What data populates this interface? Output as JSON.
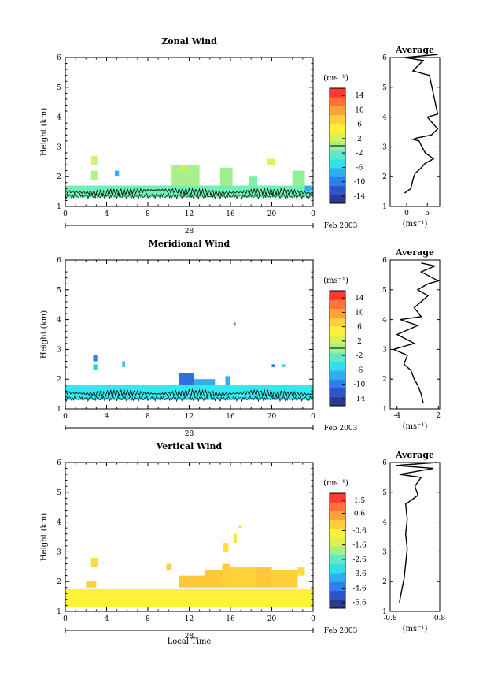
{
  "common": {
    "ylabel": "Height (km)",
    "y_range": [
      1,
      6
    ],
    "y_ticks": [
      "1",
      "2",
      "3",
      "4",
      "5",
      "6"
    ],
    "x_range": [
      0,
      24
    ],
    "x_ticks": [
      "0",
      "4",
      "8",
      "12",
      "16",
      "20",
      "0"
    ],
    "date_day": "28",
    "date_label": "Feb 2003",
    "xlabel": "Local Time",
    "units_label": "(ms⁻¹)",
    "profile_title": "Average",
    "profile_xlabel": "(ms⁻¹)"
  },
  "colors": {
    "colormap": [
      "#2b3a8c",
      "#2c56c8",
      "#2f7fe8",
      "#30aef0",
      "#35dde8",
      "#60e8c8",
      "#9ef08a",
      "#dcf050",
      "#fff03a",
      "#ffce3a",
      "#ffa23a",
      "#ff723a",
      "#ff3a2e"
    ],
    "contour": "#000000"
  },
  "chart_data": [
    {
      "type": "heatmap",
      "title": "Zonal Wind",
      "colorbar_ticks": [
        "14",
        "10",
        "6",
        "2",
        "-2",
        "-6",
        "-10",
        "-14"
      ],
      "colorbar_range": [
        -16,
        16
      ],
      "main_fill_color": "#6ff0b8",
      "bands": [
        [
          0,
          24,
          1.3,
          1.7
        ]
      ],
      "patches": [
        [
          2.5,
          3.1,
          2.4,
          2.7,
          "#cdf080"
        ],
        [
          2.5,
          3.1,
          1.9,
          2.2,
          "#b8f090"
        ],
        [
          4.8,
          5.2,
          2.0,
          2.2,
          "#30aef0"
        ],
        [
          10.3,
          13.0,
          1.7,
          2.4,
          "#a9f08a"
        ],
        [
          11.0,
          11.8,
          2.2,
          2.4,
          "#cdf060"
        ],
        [
          15.0,
          16.2,
          1.7,
          2.3,
          "#9ef08a"
        ],
        [
          17.8,
          18.6,
          1.7,
          2.0,
          "#7ff0a8"
        ],
        [
          19.5,
          20.3,
          2.4,
          2.6,
          "#e4f050"
        ],
        [
          22.0,
          23.2,
          1.7,
          2.2,
          "#8ff098"
        ],
        [
          23.2,
          23.8,
          1.5,
          1.7,
          "#30aef0"
        ]
      ],
      "contour_wave": [
        [
          0,
          1.5
        ],
        [
          3,
          1.45
        ],
        [
          6,
          1.5
        ],
        [
          9,
          1.55
        ],
        [
          12,
          1.5
        ],
        [
          15,
          1.45
        ],
        [
          18,
          1.5
        ],
        [
          21,
          1.5
        ],
        [
          24,
          1.45
        ]
      ],
      "profile": {
        "xlim": [
          -4,
          8
        ],
        "xticks": [
          "0",
          "5"
        ],
        "xtick_values": [
          0,
          5
        ],
        "points": [
          [
            7.5,
            6.1
          ],
          [
            -0.5,
            6.0
          ],
          [
            4.0,
            5.9
          ],
          [
            1.5,
            5.55
          ],
          [
            5.5,
            5.4
          ],
          [
            7.5,
            4.1
          ],
          [
            5.0,
            4.0
          ],
          [
            7.5,
            3.6
          ],
          [
            6.0,
            3.4
          ],
          [
            2.5,
            3.3
          ],
          [
            1.5,
            3.25
          ],
          [
            3.0,
            3.2
          ],
          [
            3.5,
            3.05
          ],
          [
            4.5,
            2.8
          ],
          [
            6.5,
            2.6
          ],
          [
            4.5,
            2.45
          ],
          [
            3.5,
            2.3
          ],
          [
            2.0,
            2.1
          ],
          [
            1.5,
            1.9
          ],
          [
            1.0,
            1.6
          ],
          [
            -0.5,
            1.45
          ]
        ]
      }
    },
    {
      "type": "heatmap",
      "title": "Meridional Wind",
      "colorbar_ticks": [
        "14",
        "10",
        "6",
        "2",
        "-2",
        "-6",
        "-10",
        "-14"
      ],
      "colorbar_range": [
        -16,
        16
      ],
      "main_fill_color": "#35e8f0",
      "bands": [
        [
          0,
          24,
          1.3,
          1.8
        ]
      ],
      "patches": [
        [
          2.7,
          3.1,
          2.6,
          2.8,
          "#2f7fe8"
        ],
        [
          2.7,
          3.1,
          2.3,
          2.5,
          "#35c8f0"
        ],
        [
          5.5,
          5.8,
          2.4,
          2.6,
          "#35c8f0"
        ],
        [
          11.0,
          12.5,
          1.8,
          2.2,
          "#2f6fe0"
        ],
        [
          12.5,
          14.5,
          1.8,
          2.0,
          "#30aef0"
        ],
        [
          15.5,
          16.0,
          1.8,
          2.1,
          "#30aef0"
        ],
        [
          16.3,
          16.5,
          3.8,
          3.9,
          "#2f7fe8"
        ],
        [
          20.0,
          20.3,
          2.4,
          2.5,
          "#2f7fe8"
        ],
        [
          21.0,
          21.3,
          2.4,
          2.5,
          "#35dde8"
        ]
      ],
      "contour_wave": [
        [
          0,
          1.55
        ],
        [
          3,
          1.5
        ],
        [
          6,
          1.55
        ],
        [
          9,
          1.5
        ],
        [
          12,
          1.55
        ],
        [
          15,
          1.5
        ],
        [
          18,
          1.55
        ],
        [
          21,
          1.5
        ],
        [
          24,
          1.5
        ]
      ],
      "profile": {
        "xlim": [
          -5,
          2.2
        ],
        "xticks": [
          "-4",
          "2"
        ],
        "xtick_values": [
          -4,
          2
        ],
        "points": [
          [
            -0.5,
            5.9
          ],
          [
            1.5,
            5.8
          ],
          [
            -0.5,
            5.6
          ],
          [
            2.0,
            5.3
          ],
          [
            0.5,
            5.2
          ],
          [
            -1.0,
            5.0
          ],
          [
            0.5,
            4.8
          ],
          [
            -1.5,
            4.4
          ],
          [
            -0.5,
            4.1
          ],
          [
            -3.5,
            4.0
          ],
          [
            -1.0,
            3.8
          ],
          [
            -4.0,
            3.5
          ],
          [
            -1.5,
            3.2
          ],
          [
            -4.5,
            3.0
          ],
          [
            -2.5,
            2.8
          ],
          [
            -3.0,
            2.5
          ],
          [
            -2.0,
            2.3
          ],
          [
            -1.5,
            2.0
          ],
          [
            -1.0,
            1.8
          ],
          [
            -0.5,
            1.5
          ],
          [
            -0.2,
            1.2
          ]
        ]
      }
    },
    {
      "type": "heatmap",
      "title": "Vertical Wind",
      "colorbar_ticks": [
        "1.5",
        "0.6",
        "-0.6",
        "-1.6",
        "-2.6",
        "-3.6",
        "-4.6",
        "-5.6"
      ],
      "colorbar_range": [
        -6,
        2
      ],
      "main_fill_color": "#fff03a",
      "bands": [
        [
          0,
          24,
          1.15,
          1.75
        ]
      ],
      "patches": [
        [
          2.5,
          3.2,
          2.5,
          2.8,
          "#ffdc3a"
        ],
        [
          2.0,
          3.0,
          1.8,
          2.0,
          "#ffce3a"
        ],
        [
          9.8,
          10.3,
          2.4,
          2.6,
          "#ffce3a"
        ],
        [
          11.0,
          13.5,
          1.8,
          2.2,
          "#ffc83a"
        ],
        [
          13.5,
          15.2,
          1.8,
          2.4,
          "#ffc83a"
        ],
        [
          15.2,
          16.0,
          1.8,
          2.6,
          "#ffce3a"
        ],
        [
          16.0,
          18.5,
          1.8,
          2.5,
          "#ffd23a"
        ],
        [
          18.5,
          20.0,
          1.8,
          2.5,
          "#ffc83a"
        ],
        [
          20.0,
          22.5,
          1.8,
          2.4,
          "#ffce3a"
        ],
        [
          22.5,
          23.2,
          2.2,
          2.5,
          "#ffdc3a"
        ],
        [
          15.3,
          15.8,
          3.0,
          3.3,
          "#ffe03a"
        ],
        [
          16.3,
          16.6,
          3.3,
          3.6,
          "#ffe03a"
        ],
        [
          16.8,
          17.1,
          3.8,
          3.9,
          "#ffe03a"
        ]
      ],
      "contour_wave": [],
      "profile": {
        "xlim": [
          -0.8,
          0.8
        ],
        "xticks": [
          "-0.8",
          "0.8"
        ],
        "xtick_values": [
          -0.8,
          0.8
        ],
        "points": [
          [
            0.7,
            6.0
          ],
          [
            -0.6,
            5.9
          ],
          [
            0.6,
            5.8
          ],
          [
            -0.5,
            5.6
          ],
          [
            0.2,
            5.5
          ],
          [
            0.0,
            5.2
          ],
          [
            0.1,
            4.9
          ],
          [
            -0.3,
            4.6
          ],
          [
            -0.25,
            4.1
          ],
          [
            -0.3,
            3.6
          ],
          [
            -0.25,
            3.1
          ],
          [
            -0.3,
            2.6
          ],
          [
            -0.35,
            2.1
          ],
          [
            -0.45,
            1.6
          ],
          [
            -0.5,
            1.3
          ]
        ]
      }
    }
  ]
}
